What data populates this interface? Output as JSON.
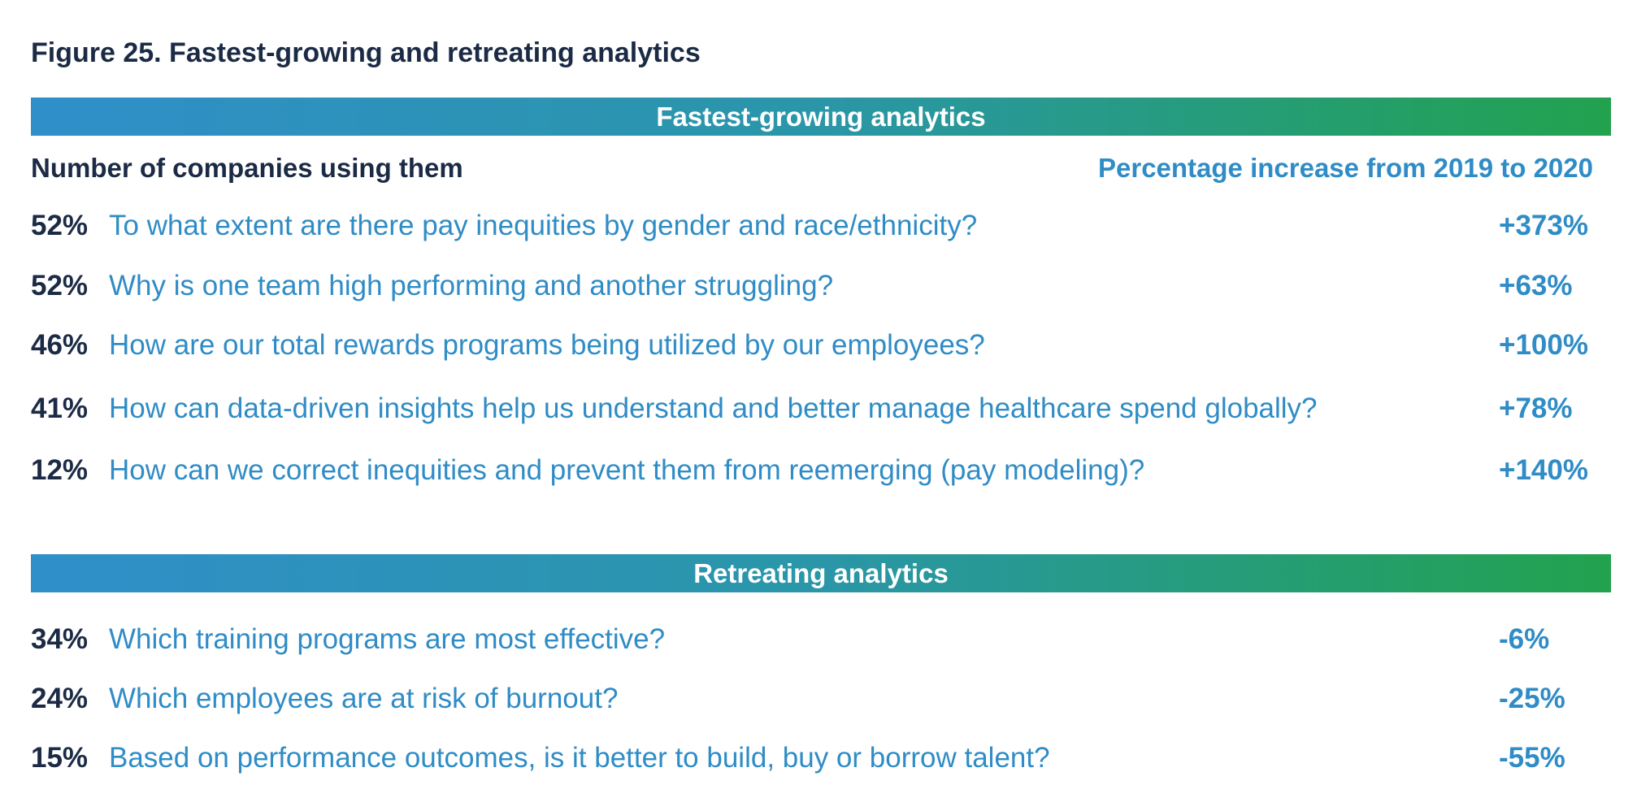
{
  "figure_title": "Figure 25. Fastest-growing and retreating analytics",
  "growing": {
    "band_label": "Fastest-growing analytics",
    "col_left": "Number of companies using them",
    "col_right": "Percentage increase from 2019 to 2020",
    "rows": [
      {
        "pct": "52%",
        "question": "To what extent are there pay inequities by gender and race/ethnicity?",
        "change": "+373%"
      },
      {
        "pct": "52%",
        "question": "Why is one team high performing and another struggling?",
        "change": "+63%"
      },
      {
        "pct": "46%",
        "question": "How are our total rewards programs being utilized by our employees?",
        "change": "+100%"
      },
      {
        "pct": "41%",
        "question": "How can data-driven insights help us understand and better manage healthcare spend globally?",
        "change": "+78%"
      },
      {
        "pct": "12%",
        "question": "How can we correct inequities and prevent them from reemerging (pay modeling)?",
        "change": "+140%"
      }
    ]
  },
  "retreating": {
    "band_label": "Retreating analytics",
    "rows": [
      {
        "pct": "34%",
        "question": "Which training programs are most effective?",
        "change": "-6%"
      },
      {
        "pct": "24%",
        "question": "Which employees are at risk of burnout?",
        "change": "-25%"
      },
      {
        "pct": "15%",
        "question": "Based on performance outcomes, is it better to build, buy or borrow talent?",
        "change": "-55%"
      }
    ]
  },
  "colors": {
    "title_navy": "#1c2b45",
    "accent_blue": "#2f8cc6",
    "band_gradient_start": "#2f8fc9",
    "band_gradient_end": "#22a24e"
  }
}
